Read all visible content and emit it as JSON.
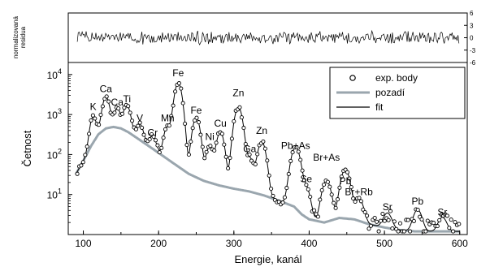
{
  "chart_data": {
    "type": "scatter",
    "xlabel": "Energie, kanál",
    "ylabel": "Četnost",
    "xlim": [
      80,
      610
    ],
    "ylim": [
      1,
      20000
    ],
    "y_scale": "log",
    "x_ticks": [
      100,
      200,
      300,
      400,
      500,
      600
    ],
    "y_ticks": [
      {
        "value": 10,
        "exp": "1"
      },
      {
        "value": 100,
        "exp": "2"
      },
      {
        "value": 1000,
        "exp": "3"
      },
      {
        "value": 10000,
        "exp": "4"
      }
    ],
    "y_tick_base": "10",
    "legend": {
      "position": "top-right",
      "entries": [
        {
          "label": "exp. body",
          "style": "open-circle",
          "color": "#000000"
        },
        {
          "label": "pozadí",
          "style": "line",
          "color": "#9aa6ae"
        },
        {
          "label": "fit",
          "style": "line",
          "color": "#000000"
        }
      ]
    },
    "peaks": [
      {
        "label": "K",
        "x": 113,
        "y": 1080
      },
      {
        "label": "Ca",
        "x": 130,
        "y": 3000
      },
      {
        "label": "Ca",
        "x": 145,
        "y": 1400
      },
      {
        "label": "Ti",
        "x": 158,
        "y": 1700
      },
      {
        "label": "V",
        "x": 175,
        "y": 560
      },
      {
        "label": "Cr",
        "x": 192,
        "y": 240
      },
      {
        "label": "Mn",
        "x": 212,
        "y": 560
      },
      {
        "label": "Fe",
        "x": 226,
        "y": 7500
      },
      {
        "label": "Fe",
        "x": 250,
        "y": 880
      },
      {
        "label": "Ni",
        "x": 268,
        "y": 190
      },
      {
        "label": "Cu",
        "x": 282,
        "y": 410
      },
      {
        "label": "Zn",
        "x": 306,
        "y": 2400
      },
      {
        "label": "Ga",
        "x": 321,
        "y": 95
      },
      {
        "label": "Zn",
        "x": 337,
        "y": 275
      },
      {
        "label": "Pb+As",
        "x": 382,
        "y": 115
      },
      {
        "label": "Se",
        "x": 396,
        "y": 17
      },
      {
        "label": "Br+As",
        "x": 423,
        "y": 58
      },
      {
        "label": "Pb",
        "x": 448,
        "y": 15
      },
      {
        "label": "Br+Rb",
        "x": 466,
        "y": 8
      },
      {
        "label": "Sr",
        "x": 504,
        "y": 3.4
      },
      {
        "label": "Pb",
        "x": 544,
        "y": 4.7
      },
      {
        "label": "Sr",
        "x": 577,
        "y": 2.5
      }
    ],
    "background_curve": {
      "x": [
        90,
        100,
        110,
        120,
        130,
        140,
        150,
        160,
        180,
        200,
        220,
        240,
        260,
        280,
        300,
        320,
        340,
        360,
        380,
        390,
        400,
        420,
        440,
        460,
        480,
        500,
        520,
        540,
        560,
        580,
        600
      ],
      "y": [
        32,
        70,
        160,
        320,
        450,
        490,
        450,
        360,
        200,
        110,
        60,
        33,
        22,
        17,
        14,
        12,
        9.5,
        7,
        5,
        3.2,
        2.4,
        2.0,
        2.6,
        2.4,
        1.8,
        1.5,
        1.3,
        1.2,
        1.2,
        1.2,
        1.2
      ]
    },
    "fit_peaks": [
      {
        "center": 113,
        "height": 700,
        "width": 3.5
      },
      {
        "center": 130,
        "height": 2300,
        "width": 4
      },
      {
        "center": 145,
        "height": 900,
        "width": 4
      },
      {
        "center": 158,
        "height": 1300,
        "width": 4
      },
      {
        "center": 175,
        "height": 350,
        "width": 4
      },
      {
        "center": 192,
        "height": 150,
        "width": 4
      },
      {
        "center": 212,
        "height": 450,
        "width": 4
      },
      {
        "center": 226,
        "height": 6000,
        "width": 4.2
      },
      {
        "center": 250,
        "height": 800,
        "width": 4.2
      },
      {
        "center": 268,
        "height": 140,
        "width": 4.2
      },
      {
        "center": 282,
        "height": 350,
        "width": 4.2
      },
      {
        "center": 306,
        "height": 1500,
        "width": 4.5
      },
      {
        "center": 321,
        "height": 70,
        "width": 4.5
      },
      {
        "center": 337,
        "height": 200,
        "width": 4.5
      },
      {
        "center": 382,
        "height": 150,
        "width": 5
      },
      {
        "center": 396,
        "height": 12,
        "width": 4.5
      },
      {
        "center": 423,
        "height": 20,
        "width": 5
      },
      {
        "center": 448,
        "height": 40,
        "width": 5
      },
      {
        "center": 466,
        "height": 6,
        "width": 5
      },
      {
        "center": 504,
        "height": 2,
        "width": 5
      },
      {
        "center": 544,
        "height": 3,
        "width": 5
      },
      {
        "center": 577,
        "height": 1.5,
        "width": 5
      }
    ],
    "residuals_panel": {
      "ylabel": "normalizovaná\nresidua",
      "ylim": [
        -6,
        6
      ],
      "ticks": [
        "6",
        "3",
        "0",
        "-3",
        "-6"
      ],
      "tick_values": [
        6,
        3,
        0,
        -3,
        -6
      ],
      "amplitude": 1.2
    }
  }
}
